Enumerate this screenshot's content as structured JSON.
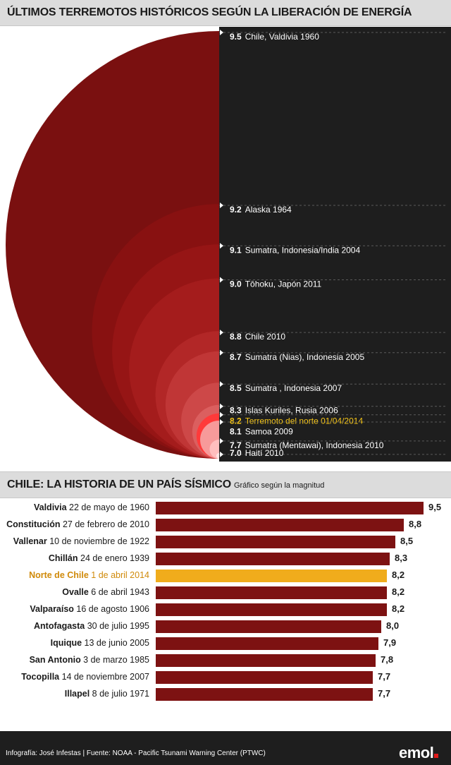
{
  "colors": {
    "dark_panel": "#1e1e1e",
    "bar_red": "#7d1212",
    "highlight": "#f0ac1c",
    "highlight_text": "#f5c518"
  },
  "circles": {
    "title": "ÚLTIMOS TERREMOTOS HISTÓRICOS SEGÚN LA LIBERACIÓN DE ENERGÍA",
    "events": [
      {
        "mag": "9.5",
        "label": "Chile, Valdivia 1960",
        "highlight": false
      },
      {
        "mag": "9.2",
        "label": "Alaska 1964",
        "highlight": false
      },
      {
        "mag": "9.1",
        "label": "Sumatra, Indonesia/India 2004",
        "highlight": false
      },
      {
        "mag": "9.0",
        "label": "Tōhoku, Japón 2011",
        "highlight": false
      },
      {
        "mag": "8.8",
        "label": "Chile 2010",
        "highlight": false
      },
      {
        "mag": "8.7",
        "label": "Sumatra (Nias), Indonesia 2005",
        "highlight": false
      },
      {
        "mag": "8.5",
        "label": "Sumatra , Indonesia 2007",
        "highlight": false
      },
      {
        "mag": "8.3",
        "label": "Islas Kuriles, Rusia 2006",
        "highlight": false
      },
      {
        "mag": "8.2",
        "label": "Terremoto del norte 01/04/2014",
        "highlight": true
      },
      {
        "mag": "8.1",
        "label": "Samoa 2009",
        "highlight": false
      },
      {
        "mag": "7.7",
        "label": "Sumatra (Mentawai), Indonesia 2010",
        "highlight": false
      },
      {
        "mag": "7.0",
        "label": "Haití 2010",
        "highlight": false
      }
    ]
  },
  "bars": {
    "title": "CHILE: LA HISTORIA DE UN PAÍS SÍSMICO",
    "subtitle": "Gráfico según la magnitud"
  },
  "chart_data": {
    "type": "bar",
    "orientation": "horizontal",
    "categories": [
      {
        "place": "Valdivia",
        "date": "22 de mayo de 1960"
      },
      {
        "place": "Constitución",
        "date": "27 de febrero de 2010"
      },
      {
        "place": "Vallenar",
        "date": "10 de noviembre de 1922"
      },
      {
        "place": "Chillán",
        "date": "24 de enero 1939"
      },
      {
        "place": "Norte de Chile",
        "date": "1 de abril 2014",
        "highlight": true
      },
      {
        "place": "Ovalle",
        "date": "6 de abril 1943"
      },
      {
        "place": "Valparaíso",
        "date": "16 de agosto 1906"
      },
      {
        "place": "Antofagasta",
        "date": "30 de julio 1995"
      },
      {
        "place": "Iquique",
        "date": "13 de junio 2005"
      },
      {
        "place": "San Antonio",
        "date": "3 de marzo 1985"
      },
      {
        "place": "Tocopilla",
        "date": "14 de noviembre 2007"
      },
      {
        "place": "Illapel",
        "date": "8 de julio 1971"
      }
    ],
    "values": [
      9.5,
      8.8,
      8.5,
      8.3,
      8.2,
      8.2,
      8.2,
      8.0,
      7.9,
      7.8,
      7.7,
      7.7
    ],
    "value_labels": [
      "9,5",
      "8,8",
      "8,5",
      "8,3",
      "8,2",
      "8,2",
      "8,2",
      "8,0",
      "7,9",
      "7,8",
      "7,7",
      "7,7"
    ],
    "xlim": [
      0,
      9.5
    ]
  },
  "footer": {
    "credit": "Infografía: José Infestas   |  Fuente: NOAA - Pacific Tsunami Warning Center (PTWC)",
    "logo": "emol"
  }
}
